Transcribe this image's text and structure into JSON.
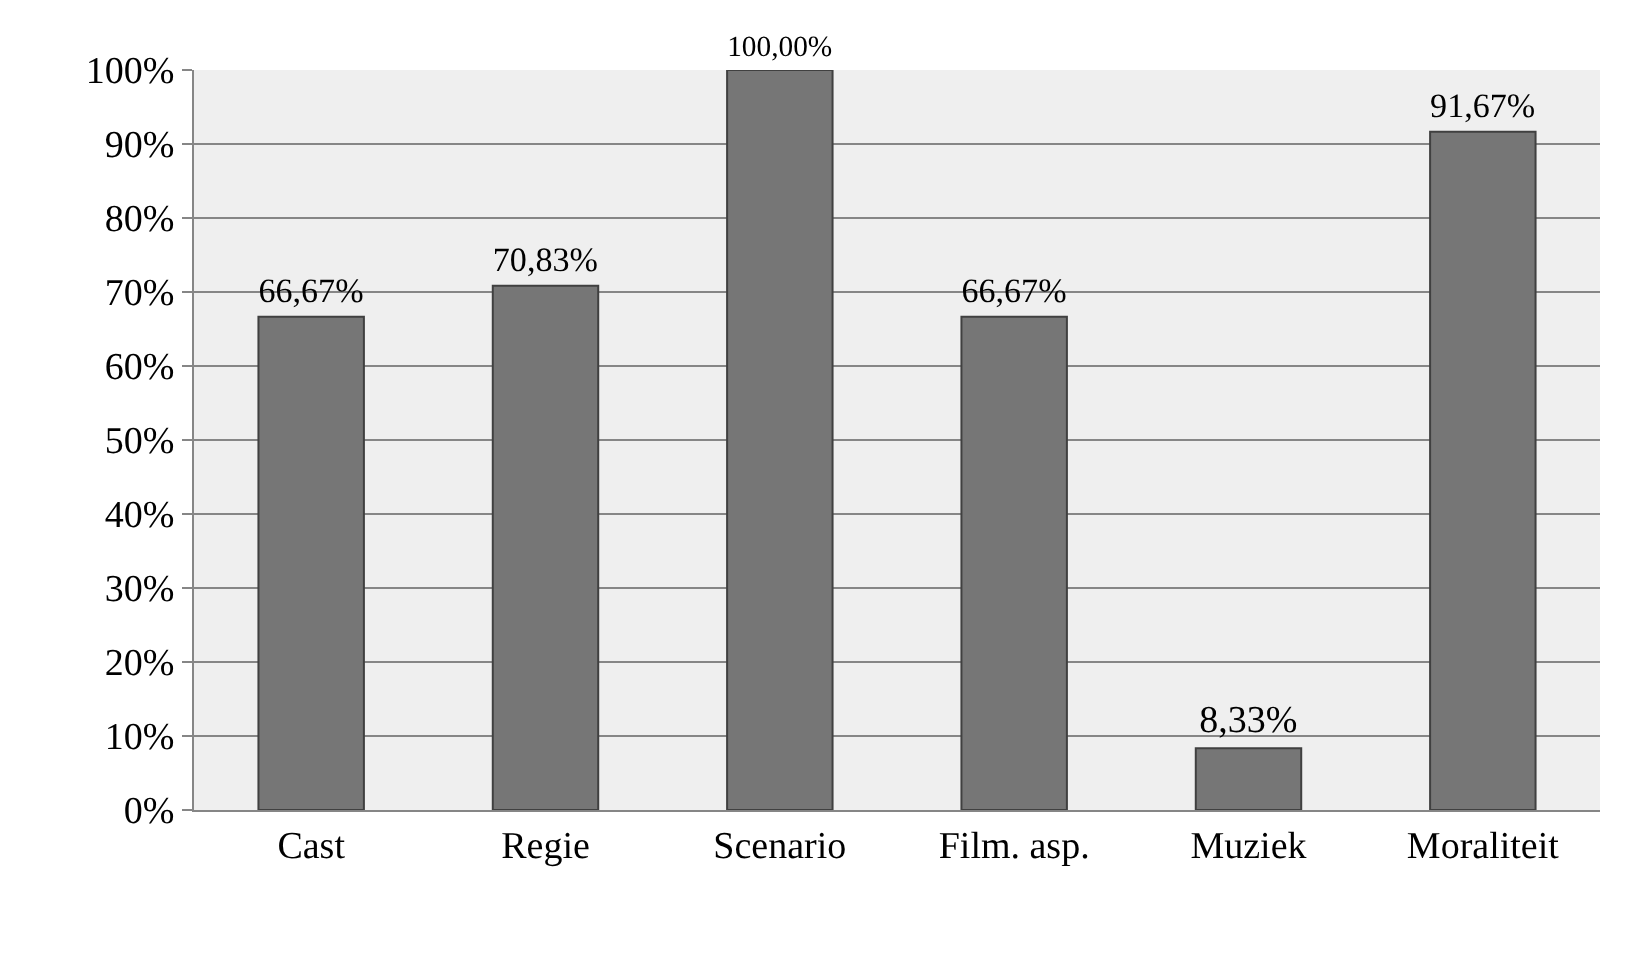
{
  "chart_data": {
    "type": "bar",
    "categories": [
      "Cast",
      "Regie",
      "Scenario",
      "Film. asp.",
      "Muziek",
      "Moraliteit"
    ],
    "values": [
      66.67,
      70.83,
      100,
      66.67,
      8.33,
      91.67
    ],
    "value_labels": [
      "66,67%",
      "70,83%",
      "100,00%",
      "66,67%",
      "8,33%",
      "91,67%"
    ],
    "color": "#767676",
    "ylim": [
      0,
      100
    ],
    "yticks": [
      {
        "value": 0,
        "label": "0%"
      },
      {
        "value": 10,
        "label": "10%"
      },
      {
        "value": 20,
        "label": "20%"
      },
      {
        "value": 30,
        "label": "30%"
      },
      {
        "value": 40,
        "label": "40%"
      },
      {
        "value": 50,
        "label": "50%"
      },
      {
        "value": 60,
        "label": "60%"
      },
      {
        "value": 70,
        "label": "70%"
      },
      {
        "value": 80,
        "label": "80%"
      },
      {
        "value": 90,
        "label": "90%"
      },
      {
        "value": 100,
        "label": "100%"
      }
    ],
    "grid": "y",
    "legend": false
  }
}
